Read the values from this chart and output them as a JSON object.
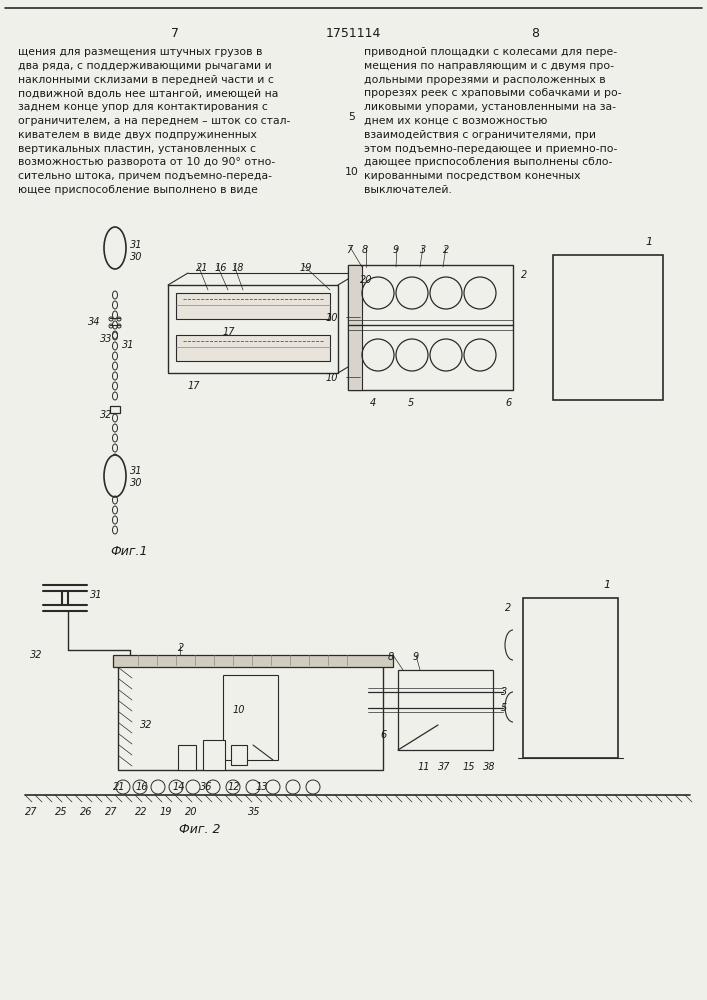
{
  "page_number_left": "7",
  "page_number_center": "1751114",
  "page_number_right": "8",
  "text_left": "щения для размещения штучных грузов в\nдва ряда, с поддерживающими рычагами и\nнаклонными склизами в передней части и с\nподвижной вдоль нее штангой, имеющей на\nзаднем конце упор для контактирования с\nограничителем, а на переднем – шток со стал-\nкивателем в виде двух подпружиненных\nвертикальных пластин, установленных с\nвозможностью разворота от 10 до 90° отно-\nсительно штока, причем подъемно-переда-\nющее приспособление выполнено в виде",
  "text_right": "приводной площадки с колесами для пере-\nмещения по направляющим и с двумя про-\nдольными прорезями и расположенных в\nпрорезях реек с храповыми собачками и ро-\nликовыми упорами, установленными на за-\nднем их конце с возможностью\nвзаимодействия с ограничителями, при\nэтом подъемно-передающее и приемно-по-\nдающее приспособления выполнены сбло-\nкированными посредством конечных\nвыключателей.",
  "fig1_caption": "Фиг.1",
  "fig2_caption": "Фиг. 2",
  "bg_color": "#f0f0eb",
  "line_color": "#2a2a2a",
  "text_color": "#1a1a1a"
}
